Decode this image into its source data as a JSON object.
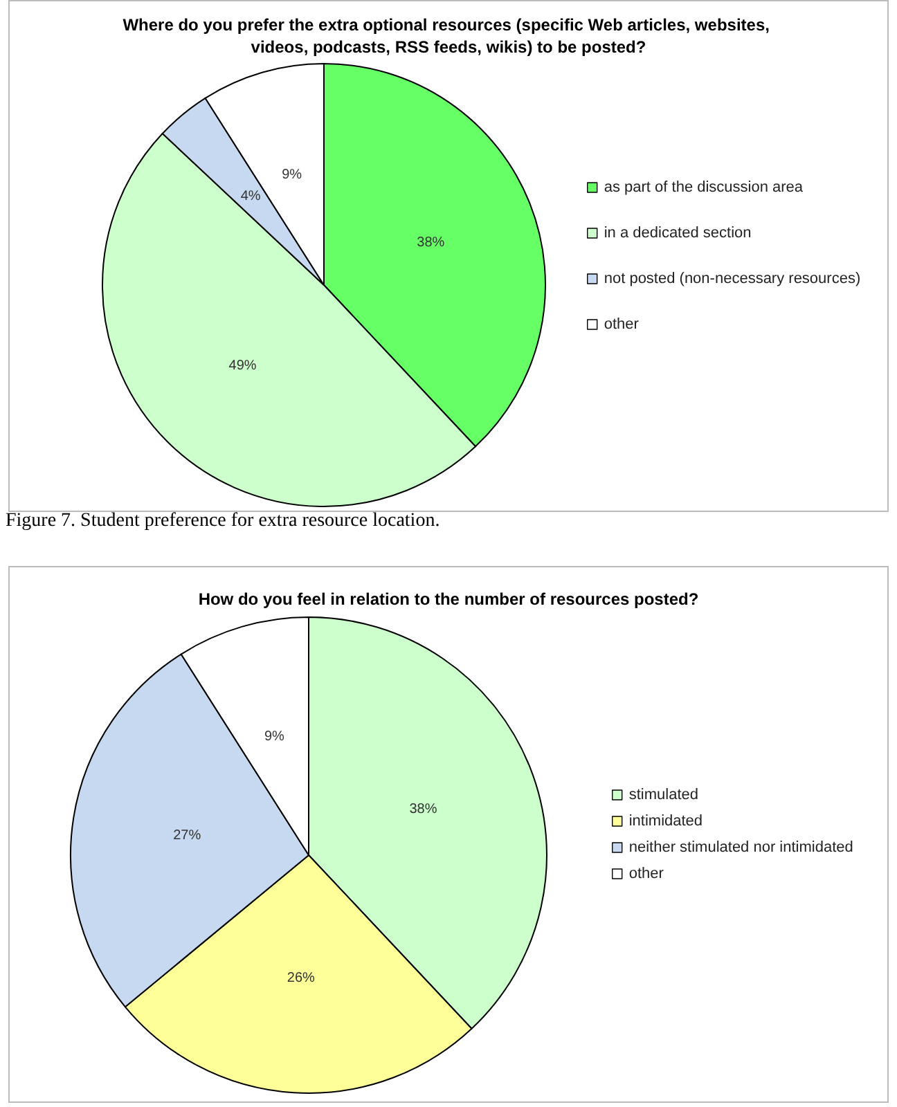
{
  "chart_data": [
    {
      "type": "pie",
      "title": "Where do you prefer the extra optional resources (specific Web articles, websites, videos, podcasts, RSS feeds, wikis) to be posted?",
      "categories": [
        "as part of the discussion area",
        "in a dedicated section",
        "not posted (non-necessary resources)",
        "other"
      ],
      "values": [
        38,
        49,
        4,
        9
      ],
      "value_labels": [
        "38%",
        "49%",
        "4%",
        "9%"
      ],
      "colors": [
        "#66ff66",
        "#ccffcc",
        "#c6d9f0",
        "#ffffff"
      ],
      "legend": "right",
      "annotations": [
        "Figure 7. Student preference for extra resource location."
      ]
    },
    {
      "type": "pie",
      "title": "How do you feel in relation to the number of resources posted?",
      "categories": [
        "stimulated",
        "intimidated",
        "neither stimulated nor intimidated",
        "other"
      ],
      "values": [
        38,
        26,
        27,
        9
      ],
      "value_labels": [
        "38%",
        "26%",
        "27%",
        "9%"
      ],
      "colors": [
        "#ccffcc",
        "#ffff99",
        "#c6d9f0",
        "#ffffff"
      ],
      "legend": "right"
    }
  ]
}
